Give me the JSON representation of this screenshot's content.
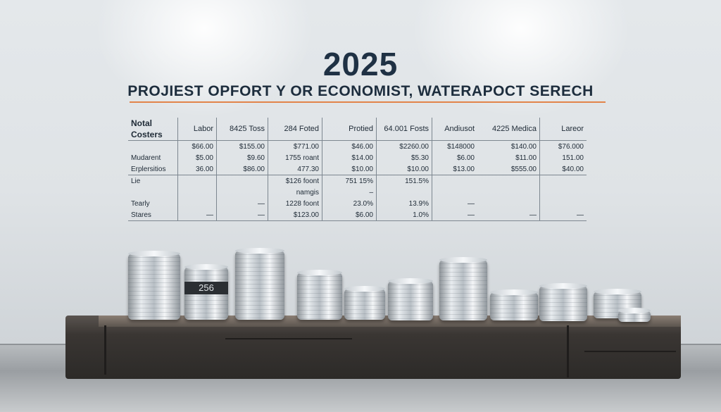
{
  "heading": {
    "year": "2025",
    "subtitle": "PROJIEST OPFORT Y OR ECONOMIST, WATERAPOCT SERECH"
  },
  "table": {
    "corner": [
      "Notal",
      "Costers"
    ],
    "columns": [
      "Labor",
      "8425 Toss",
      "284 Foted",
      "Protied",
      "64.001 Fosts",
      "Andiusot",
      "4225 Medica",
      "Lareor"
    ],
    "rows": [
      {
        "label": "",
        "cells": [
          "$66.00",
          "$155.00",
          "$771.00",
          "$46.00",
          "$2260.00",
          "$148000",
          "$140.00",
          "$76.000"
        ]
      },
      {
        "label": "Mudarent",
        "cells": [
          "$5.00",
          "$9.60",
          "1755 roant",
          "$14.00",
          "$5.30",
          "$6.00",
          "$11.00",
          "151.00"
        ]
      },
      {
        "label": "Erplersitios",
        "cells": [
          "36.00",
          "$86.00",
          "477.30",
          "$10.00",
          "$10.00",
          "$13.00",
          "$555.00",
          "$40.00"
        ]
      },
      {
        "label": "Lie",
        "cells": [
          "",
          "",
          "$126 foont",
          "751 15%",
          "151.5%",
          "",
          "",
          ""
        ]
      },
      {
        "label": "",
        "cells": [
          "",
          "",
          "namgis",
          "–",
          "",
          "",
          "",
          ""
        ]
      },
      {
        "label": "Tearly",
        "cells": [
          "",
          "—",
          "1228 foont",
          "23.0%",
          "13.9%",
          "—",
          "",
          ""
        ]
      },
      {
        "label": "Stares",
        "cells": [
          "—",
          "—",
          "$123.00",
          "$6.00",
          "1.0%",
          "—",
          "—",
          "—"
        ]
      }
    ]
  },
  "coin_badge": "256"
}
